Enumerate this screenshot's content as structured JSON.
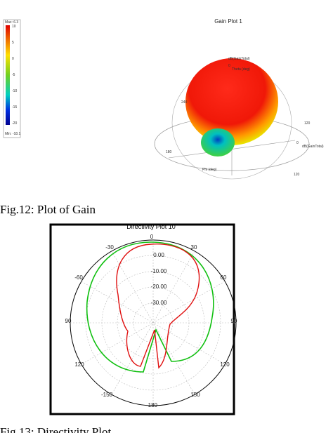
{
  "legend": {
    "title": "Max: 6.3",
    "ticks": [
      "10",
      "5",
      "0",
      "-5",
      "-10",
      "-15",
      "-20"
    ],
    "footer": "Min: -18.1"
  },
  "gain_plot": {
    "title": "Gain Plot 1",
    "labels": [
      "dB(GainTotal)",
      "Theta (deg)",
      "0",
      "240",
      "120",
      "0",
      "dB(GainTotal)",
      "180",
      "120",
      "Phi (deg)"
    ],
    "caption": "Fig.12: Plot of Gain"
  },
  "directivity_plot": {
    "title": "Directivity Plot 10",
    "angle_labels": [
      "0",
      "-30",
      "30",
      "-60",
      "60",
      "90",
      "90",
      "120",
      "120",
      "-150",
      "150",
      "-180"
    ],
    "radial_labels": [
      "0.00",
      "-10.00",
      "-20.00",
      "-30.00"
    ],
    "caption": "Fig.13: Directivity Plot"
  }
}
